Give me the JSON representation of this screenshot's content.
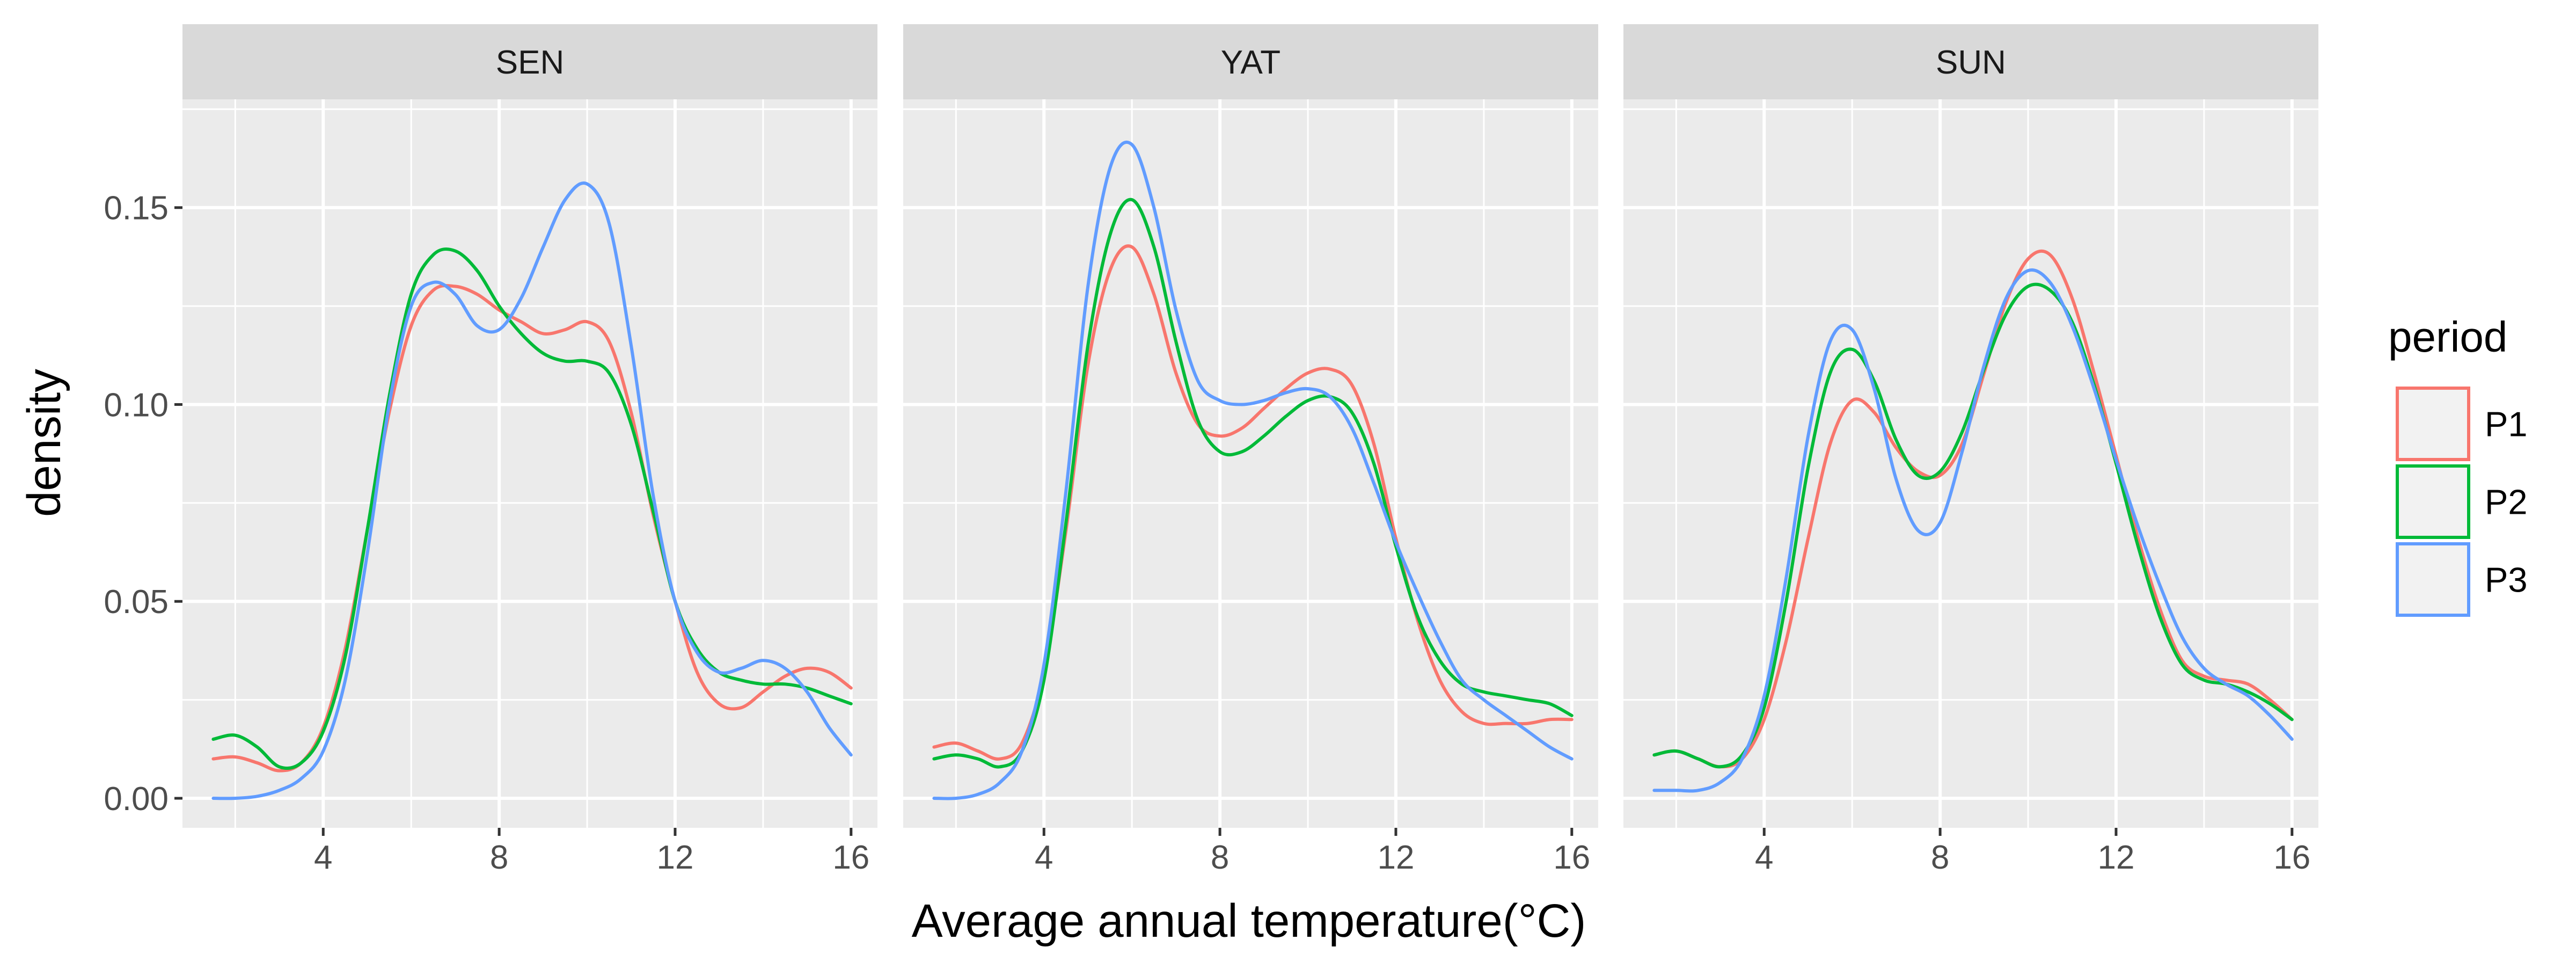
{
  "chart_data": {
    "type": "line",
    "subtype": "faceted density plot",
    "xlabel": "Average annual temperature(°C)",
    "ylabel": "density",
    "xlim": [
      0.8,
      16.6
    ],
    "ylim": [
      -0.0075,
      0.1775
    ],
    "x_ticks": [
      4,
      8,
      12,
      16
    ],
    "x_tick_labels": [
      "4",
      "8",
      "12",
      "16"
    ],
    "y_ticks": [
      0,
      0.05,
      0.1,
      0.15
    ],
    "y_tick_labels": [
      "0.00",
      "0.05",
      "0.10",
      "0.15"
    ],
    "grid": true,
    "legend": {
      "title": "period",
      "position": "right",
      "entries": [
        "P1",
        "P2",
        "P3"
      ]
    },
    "series_colors": {
      "P1": "#f8766d",
      "P2": "#00ba38",
      "P3": "#619cff"
    },
    "panel_background": "#ebebeb",
    "strip_background": "#d9d9d9",
    "panels": [
      {
        "label": "SEN",
        "series": [
          {
            "name": "P1",
            "x": [
              1.5,
              2,
              2.5,
              3,
              3.5,
              4,
              4.5,
              5,
              5.5,
              6,
              6.5,
              7,
              7.5,
              8,
              8.5,
              9,
              9.5,
              10,
              10.5,
              11,
              11.5,
              12,
              12.5,
              13,
              13.5,
              14,
              14.5,
              15,
              15.5,
              16
            ],
            "y": [
              0.01,
              0.0105,
              0.009,
              0.007,
              0.009,
              0.018,
              0.038,
              0.068,
              0.098,
              0.12,
              0.129,
              0.13,
              0.128,
              0.124,
              0.121,
              0.118,
              0.119,
              0.121,
              0.116,
              0.098,
              0.072,
              0.05,
              0.032,
              0.024,
              0.023,
              0.027,
              0.031,
              0.033,
              0.032,
              0.028
            ]
          },
          {
            "name": "P2",
            "x": [
              1.5,
              2,
              2.5,
              3,
              3.5,
              4,
              4.5,
              5,
              5.5,
              6,
              6.5,
              7,
              7.5,
              8,
              8.5,
              9,
              9.5,
              10,
              10.5,
              11,
              11.5,
              12,
              12.5,
              13,
              13.5,
              14,
              14.5,
              15,
              15.5,
              16
            ],
            "y": [
              0.015,
              0.016,
              0.013,
              0.008,
              0.009,
              0.017,
              0.036,
              0.068,
              0.102,
              0.128,
              0.138,
              0.139,
              0.134,
              0.125,
              0.118,
              0.113,
              0.111,
              0.111,
              0.108,
              0.095,
              0.073,
              0.05,
              0.038,
              0.032,
              0.03,
              0.029,
              0.029,
              0.028,
              0.026,
              0.024
            ]
          },
          {
            "name": "P3",
            "x": [
              1.5,
              2,
              2.5,
              3,
              3.5,
              4,
              4.5,
              5,
              5.5,
              6,
              6.5,
              7,
              7.5,
              8,
              8.5,
              9,
              9.5,
              10,
              10.5,
              11,
              11.5,
              12,
              12.5,
              13,
              13.5,
              14,
              14.5,
              15,
              15.5,
              16
            ],
            "y": [
              0.0,
              0.0,
              0.0005,
              0.002,
              0.005,
              0.012,
              0.03,
              0.062,
              0.1,
              0.125,
              0.131,
              0.128,
              0.12,
              0.119,
              0.127,
              0.14,
              0.152,
              0.156,
              0.146,
              0.115,
              0.077,
              0.05,
              0.037,
              0.032,
              0.033,
              0.035,
              0.033,
              0.027,
              0.018,
              0.011
            ]
          }
        ]
      },
      {
        "label": "YAT",
        "series": [
          {
            "name": "P1",
            "x": [
              1.5,
              2,
              2.5,
              3,
              3.5,
              4,
              4.5,
              5,
              5.5,
              6,
              6.5,
              7,
              7.5,
              8,
              8.5,
              9,
              9.5,
              10,
              10.5,
              11,
              11.5,
              12,
              12.5,
              13,
              13.5,
              14,
              14.5,
              15,
              15.5,
              16
            ],
            "y": [
              0.013,
              0.014,
              0.012,
              0.01,
              0.014,
              0.032,
              0.068,
              0.11,
              0.134,
              0.14,
              0.128,
              0.108,
              0.095,
              0.092,
              0.094,
              0.099,
              0.104,
              0.108,
              0.109,
              0.105,
              0.09,
              0.066,
              0.045,
              0.03,
              0.022,
              0.019,
              0.019,
              0.019,
              0.02,
              0.02
            ]
          },
          {
            "name": "P2",
            "x": [
              1.5,
              2,
              2.5,
              3,
              3.5,
              4,
              4.5,
              5,
              5.5,
              6,
              6.5,
              7,
              7.5,
              8,
              8.5,
              9,
              9.5,
              10,
              10.5,
              11,
              11.5,
              12,
              12.5,
              13,
              13.5,
              14,
              14.5,
              15,
              15.5,
              16
            ],
            "y": [
              0.01,
              0.011,
              0.01,
              0.008,
              0.012,
              0.03,
              0.07,
              0.115,
              0.143,
              0.152,
              0.14,
              0.116,
              0.096,
              0.088,
              0.088,
              0.092,
              0.097,
              0.101,
              0.102,
              0.098,
              0.085,
              0.064,
              0.046,
              0.035,
              0.029,
              0.027,
              0.026,
              0.025,
              0.024,
              0.021
            ]
          },
          {
            "name": "P3",
            "x": [
              1.5,
              2,
              2.5,
              3,
              3.5,
              4,
              4.5,
              5,
              5.5,
              6,
              6.5,
              7,
              7.5,
              8,
              8.5,
              9,
              9.5,
              10,
              10.5,
              11,
              11.5,
              12,
              12.5,
              13,
              13.5,
              14,
              14.5,
              15,
              15.5,
              16
            ],
            "y": [
              0.0,
              0.0,
              0.001,
              0.004,
              0.012,
              0.034,
              0.078,
              0.13,
              0.16,
              0.166,
              0.15,
              0.124,
              0.106,
              0.101,
              0.1,
              0.101,
              0.103,
              0.104,
              0.102,
              0.094,
              0.08,
              0.065,
              0.052,
              0.04,
              0.03,
              0.025,
              0.021,
              0.017,
              0.013,
              0.01
            ]
          }
        ]
      },
      {
        "label": "SUN",
        "series": [
          {
            "name": "P1",
            "x": [
              1.5,
              2,
              2.5,
              3,
              3.5,
              4,
              4.5,
              5,
              5.5,
              6,
              6.5,
              7,
              7.5,
              8,
              8.5,
              9,
              9.5,
              10,
              10.5,
              11,
              11.5,
              12,
              12.5,
              13,
              13.5,
              14,
              14.5,
              15,
              15.5,
              16
            ],
            "y": [
              0.011,
              0.012,
              0.01,
              0.008,
              0.01,
              0.02,
              0.04,
              0.066,
              0.09,
              0.101,
              0.098,
              0.089,
              0.083,
              0.082,
              0.09,
              0.108,
              0.126,
              0.137,
              0.138,
              0.127,
              0.108,
              0.087,
              0.066,
              0.048,
              0.035,
              0.031,
              0.03,
              0.029,
              0.025,
              0.02
            ]
          },
          {
            "name": "P2",
            "x": [
              1.5,
              2,
              2.5,
              3,
              3.5,
              4,
              4.5,
              5,
              5.5,
              6,
              6.5,
              7,
              7.5,
              8,
              8.5,
              9,
              9.5,
              10,
              10.5,
              11,
              11.5,
              12,
              12.5,
              13,
              13.5,
              14,
              14.5,
              15,
              15.5,
              16
            ],
            "y": [
              0.011,
              0.012,
              0.01,
              0.008,
              0.011,
              0.023,
              0.05,
              0.084,
              0.108,
              0.114,
              0.106,
              0.091,
              0.082,
              0.083,
              0.093,
              0.109,
              0.123,
              0.13,
              0.129,
              0.121,
              0.105,
              0.085,
              0.064,
              0.046,
              0.034,
              0.03,
              0.029,
              0.027,
              0.024,
              0.02
            ]
          },
          {
            "name": "P3",
            "x": [
              1.5,
              2,
              2.5,
              3,
              3.5,
              4,
              4.5,
              5,
              5.5,
              6,
              6.5,
              7,
              7.5,
              8,
              8.5,
              9,
              9.5,
              10,
              10.5,
              11,
              11.5,
              12,
              12.5,
              13,
              13.5,
              14,
              14.5,
              15,
              15.5,
              16
            ],
            "y": [
              0.002,
              0.002,
              0.002,
              0.004,
              0.01,
              0.026,
              0.056,
              0.092,
              0.116,
              0.119,
              0.104,
              0.081,
              0.068,
              0.07,
              0.088,
              0.11,
              0.127,
              0.134,
              0.131,
              0.12,
              0.104,
              0.086,
              0.069,
              0.054,
              0.041,
              0.033,
              0.029,
              0.026,
              0.021,
              0.015
            ]
          }
        ]
      }
    ]
  }
}
